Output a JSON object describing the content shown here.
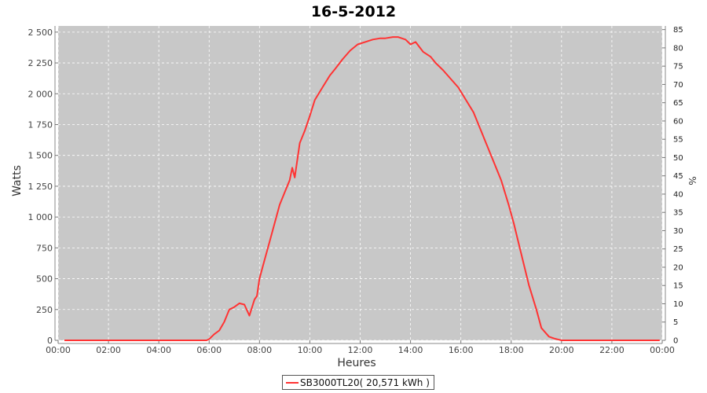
{
  "chart_data": {
    "type": "line",
    "title": "16-5-2012",
    "xlabel": "Heures",
    "ylabel": "Watts",
    "y2label": "%",
    "xlim": [
      0,
      24
    ],
    "ylim": [
      0,
      2550
    ],
    "y2lim": [
      0,
      86
    ],
    "grid": true,
    "legend_position": "bottom-center",
    "background": "#c8c8c8",
    "x_ticks": [
      "00:00",
      "02:00",
      "04:00",
      "06:00",
      "08:00",
      "10:00",
      "12:00",
      "14:00",
      "16:00",
      "18:00",
      "20:00",
      "22:00",
      "00:00"
    ],
    "y_ticks": [
      {
        "value": 0,
        "label": "0"
      },
      {
        "value": 250,
        "label": "250"
      },
      {
        "value": 500,
        "label": "500"
      },
      {
        "value": 750,
        "label": "750"
      },
      {
        "value": 1000,
        "label": "1 000"
      },
      {
        "value": 1250,
        "label": "1 250"
      },
      {
        "value": 1500,
        "label": "1 500"
      },
      {
        "value": 1750,
        "label": "1 750"
      },
      {
        "value": 2000,
        "label": "2 000"
      },
      {
        "value": 2250,
        "label": "2 250"
      },
      {
        "value": 2500,
        "label": "2 500"
      }
    ],
    "y2_ticks": [
      0,
      5,
      10,
      15,
      20,
      25,
      30,
      35,
      40,
      45,
      50,
      55,
      60,
      65,
      70,
      75,
      80,
      85
    ],
    "series": [
      {
        "name": "SB3000TL20( 20,571 kWh )",
        "color": "#ff3333",
        "x": [
          0,
          5.9,
          6.0,
          6.2,
          6.4,
          6.6,
          6.8,
          7.0,
          7.2,
          7.4,
          7.6,
          7.8,
          7.9,
          8.0,
          8.2,
          8.4,
          8.6,
          8.8,
          9.0,
          9.2,
          9.3,
          9.4,
          9.6,
          9.8,
          10.0,
          10.2,
          10.5,
          10.8,
          11.0,
          11.3,
          11.6,
          11.9,
          12.2,
          12.5,
          12.8,
          13.0,
          13.3,
          13.5,
          13.8,
          14.0,
          14.2,
          14.5,
          14.8,
          15.0,
          15.3,
          15.6,
          15.9,
          16.2,
          16.5,
          16.8,
          17.0,
          17.3,
          17.6,
          17.9,
          18.1,
          18.4,
          18.7,
          19.0,
          19.2,
          19.5,
          19.7,
          19.9,
          20.0,
          20.2,
          24
        ],
        "values": [
          0,
          0,
          10,
          50,
          80,
          150,
          250,
          270,
          300,
          290,
          200,
          330,
          360,
          500,
          650,
          800,
          950,
          1100,
          1200,
          1300,
          1400,
          1320,
          1600,
          1700,
          1820,
          1950,
          2050,
          2150,
          2200,
          2280,
          2350,
          2400,
          2420,
          2440,
          2450,
          2450,
          2460,
          2460,
          2440,
          2400,
          2420,
          2340,
          2300,
          2250,
          2190,
          2120,
          2050,
          1950,
          1850,
          1700,
          1600,
          1450,
          1300,
          1100,
          950,
          700,
          450,
          250,
          100,
          30,
          15,
          5,
          0,
          0,
          0
        ]
      }
    ]
  }
}
